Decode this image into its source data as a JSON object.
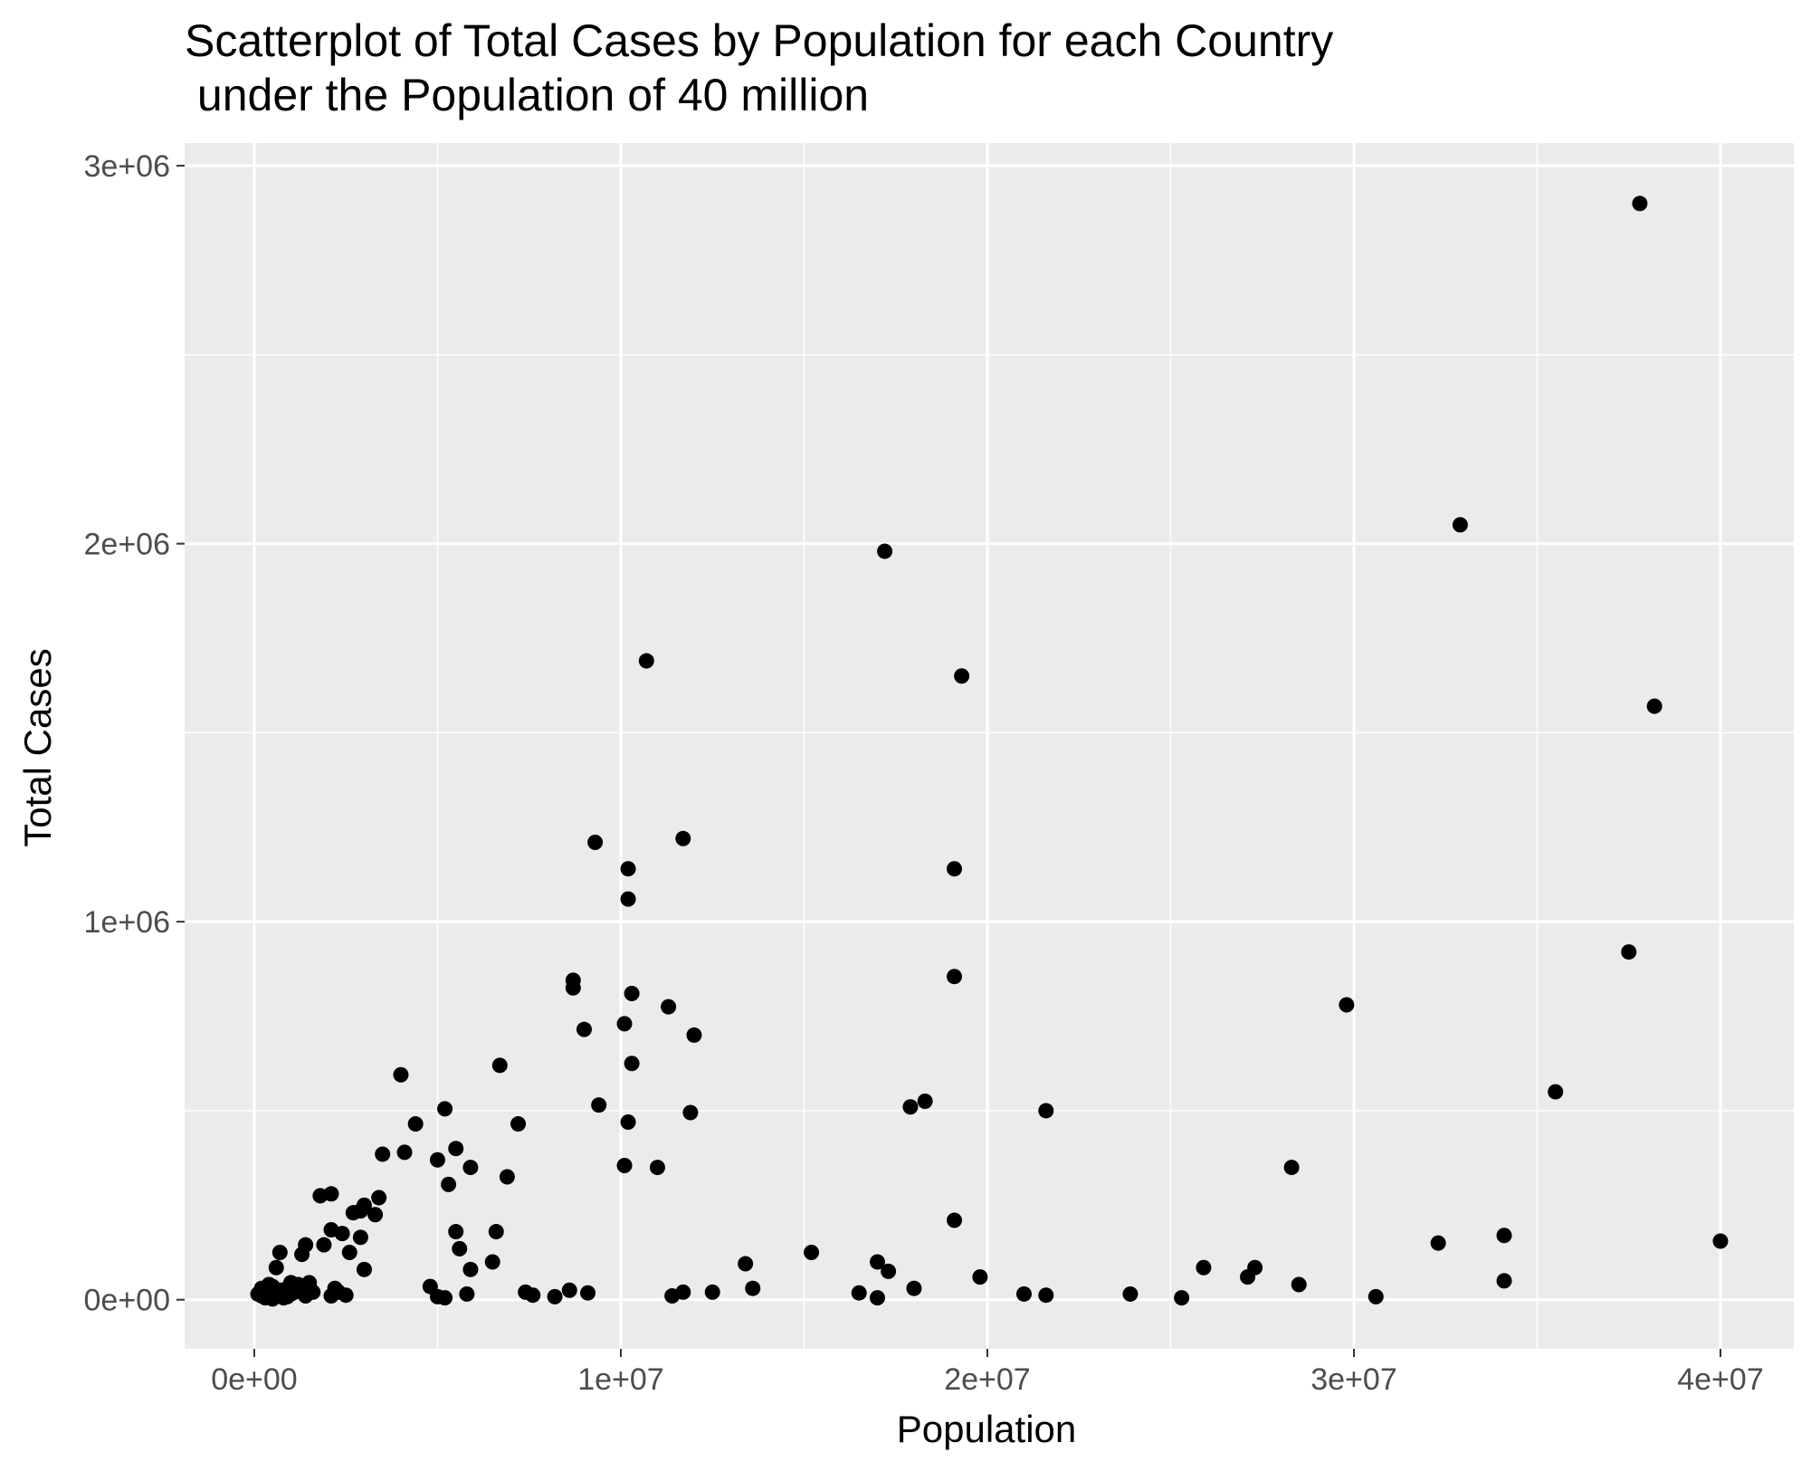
{
  "chart_data": {
    "type": "scatter",
    "title_lines": [
      "Scatterplot of Total Cases by Population for each Country",
      " under the Population of 40 million"
    ],
    "xlabel": "Population",
    "ylabel": "Total Cases",
    "xlim": [
      -1900000,
      42000000
    ],
    "ylim": [
      -130000,
      3060000
    ],
    "x_ticks": [
      0,
      10000000,
      20000000,
      30000000,
      40000000
    ],
    "x_tick_labels": [
      "0e+00",
      "1e+07",
      "2e+07",
      "3e+07",
      "4e+07"
    ],
    "y_ticks": [
      0,
      1000000,
      2000000,
      3000000
    ],
    "y_tick_labels": [
      "0e+00",
      "1e+06",
      "2e+06",
      "3e+06"
    ],
    "grid": true,
    "point_color": "#000000",
    "panel_color": "#ebebeb",
    "grid_color": "#ffffff",
    "points": [
      [
        37800000,
        2900000
      ],
      [
        32900000,
        2050000
      ],
      [
        17200000,
        1980000
      ],
      [
        10700000,
        1690000
      ],
      [
        19300000,
        1650000
      ],
      [
        38200000,
        1570000
      ],
      [
        9300000,
        1210000
      ],
      [
        11700000,
        1220000
      ],
      [
        10200000,
        1140000
      ],
      [
        19100000,
        1140000
      ],
      [
        10200000,
        1060000
      ],
      [
        37500000,
        920000
      ],
      [
        19100000,
        855000
      ],
      [
        8700000,
        845000
      ],
      [
        8700000,
        825000
      ],
      [
        10300000,
        810000
      ],
      [
        29800000,
        780000
      ],
      [
        11300000,
        775000
      ],
      [
        10100000,
        730000
      ],
      [
        9000000,
        715000
      ],
      [
        12000000,
        700000
      ],
      [
        10300000,
        625000
      ],
      [
        6700000,
        620000
      ],
      [
        4000000,
        595000
      ],
      [
        35500000,
        550000
      ],
      [
        18300000,
        525000
      ],
      [
        9400000,
        515000
      ],
      [
        17900000,
        510000
      ],
      [
        5200000,
        505000
      ],
      [
        21600000,
        500000
      ],
      [
        11900000,
        495000
      ],
      [
        10200000,
        470000
      ],
      [
        4400000,
        465000
      ],
      [
        7200000,
        465000
      ],
      [
        5500000,
        400000
      ],
      [
        4100000,
        390000
      ],
      [
        3500000,
        385000
      ],
      [
        5000000,
        370000
      ],
      [
        10100000,
        355000
      ],
      [
        11000000,
        350000
      ],
      [
        28300000,
        350000
      ],
      [
        5900000,
        350000
      ],
      [
        6900000,
        325000
      ],
      [
        5300000,
        305000
      ],
      [
        2100000,
        280000
      ],
      [
        1800000,
        275000
      ],
      [
        3400000,
        270000
      ],
      [
        3000000,
        250000
      ],
      [
        2900000,
        235000
      ],
      [
        2700000,
        230000
      ],
      [
        3300000,
        225000
      ],
      [
        19100000,
        210000
      ],
      [
        2100000,
        185000
      ],
      [
        5500000,
        180000
      ],
      [
        6600000,
        180000
      ],
      [
        2400000,
        175000
      ],
      [
        34100000,
        170000
      ],
      [
        2900000,
        165000
      ],
      [
        40000000,
        155000
      ],
      [
        32300000,
        150000
      ],
      [
        1400000,
        145000
      ],
      [
        1900000,
        145000
      ],
      [
        5600000,
        135000
      ],
      [
        2600000,
        125000
      ],
      [
        15200000,
        125000
      ],
      [
        1300000,
        120000
      ],
      [
        700000,
        125000
      ],
      [
        6500000,
        100000
      ],
      [
        13400000,
        95000
      ],
      [
        17000000,
        100000
      ],
      [
        27300000,
        85000
      ],
      [
        25900000,
        85000
      ],
      [
        600000,
        85000
      ],
      [
        3000000,
        80000
      ],
      [
        5900000,
        80000
      ],
      [
        17300000,
        75000
      ],
      [
        19800000,
        60000
      ],
      [
        27100000,
        60000
      ],
      [
        34100000,
        50000
      ],
      [
        28500000,
        40000
      ],
      [
        4800000,
        35000
      ],
      [
        13600000,
        30000
      ],
      [
        18000000,
        30000
      ],
      [
        8600000,
        25000
      ],
      [
        2200000,
        30000
      ],
      [
        11700000,
        20000
      ],
      [
        12500000,
        20000
      ],
      [
        7400000,
        20000
      ],
      [
        9100000,
        18000
      ],
      [
        16500000,
        18000
      ],
      [
        2300000,
        20000
      ],
      [
        5800000,
        15000
      ],
      [
        23900000,
        15000
      ],
      [
        21000000,
        15000
      ],
      [
        21600000,
        12000
      ],
      [
        2500000,
        12000
      ],
      [
        7600000,
        12000
      ],
      [
        11400000,
        10000
      ],
      [
        8200000,
        8000
      ],
      [
        17000000,
        5000
      ],
      [
        25300000,
        5000
      ],
      [
        30600000,
        8000
      ],
      [
        2100000,
        10000
      ],
      [
        5000000,
        8000
      ],
      [
        5200000,
        5000
      ],
      [
        100000,
        15000
      ],
      [
        200000,
        10000
      ],
      [
        300000,
        20000
      ],
      [
        400000,
        40000
      ],
      [
        500000,
        35000
      ],
      [
        800000,
        5000
      ],
      [
        900000,
        30000
      ],
      [
        1000000,
        45000
      ],
      [
        1100000,
        20000
      ],
      [
        1200000,
        40000
      ],
      [
        1300000,
        35000
      ],
      [
        1500000,
        45000
      ],
      [
        1600000,
        20000
      ],
      [
        600000,
        10000
      ],
      [
        300000,
        5000
      ],
      [
        700000,
        25000
      ],
      [
        1000000,
        15000
      ],
      [
        1400000,
        10000
      ],
      [
        500000,
        2000
      ],
      [
        900000,
        8000
      ],
      [
        1200000,
        25000
      ],
      [
        200000,
        30000
      ]
    ]
  }
}
